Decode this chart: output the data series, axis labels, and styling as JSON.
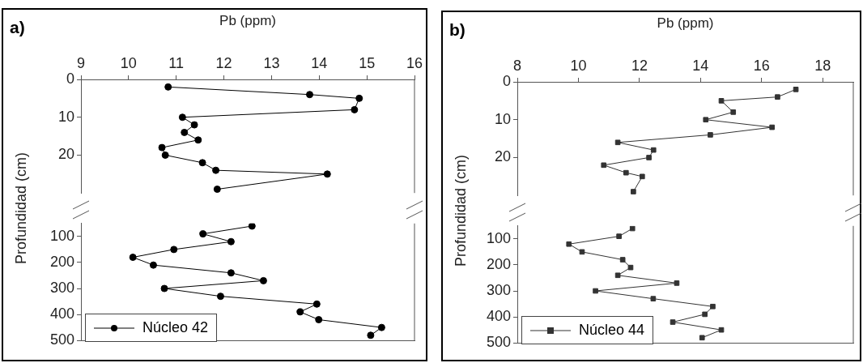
{
  "chart_data": [
    {
      "type": "line",
      "title": "a)",
      "xlabel": "Pb (ppm)",
      "ylabel": "Profundidad (cm)",
      "xlim": [
        9,
        16
      ],
      "xticks": [
        9,
        10,
        11,
        12,
        13,
        14,
        15,
        16
      ],
      "ylim": [
        30,
        0
      ],
      "yticks": [
        0,
        10,
        20
      ],
      "marker": "circle",
      "line_style": "solid",
      "series": [
        {
          "color": "#000000",
          "x": [
            10.83,
            13.8,
            14.84,
            14.74,
            11.13,
            11.38,
            11.17,
            11.46,
            10.7,
            10.77,
            11.55,
            11.83,
            14.17,
            11.86
          ],
          "values": [
            2,
            4,
            5,
            8,
            10,
            12,
            14,
            16,
            18,
            20,
            22,
            24,
            25,
            29
          ]
        }
      ]
    },
    {
      "type": "line",
      "xlim": [
        9,
        16
      ],
      "ylim": [
        500,
        50
      ],
      "yticks": [
        100,
        200,
        300,
        400,
        500
      ],
      "tick_labels": "y",
      "legend": "bottom left",
      "marker": "circle",
      "line_style": "solid",
      "series": [
        {
          "name": "Núcleo 42",
          "color": "#000000",
          "x": [
            12.59,
            11.56,
            12.15,
            10.95,
            10.09,
            10.52,
            12.15,
            12.83,
            10.75,
            11.93,
            13.95,
            13.6,
            13.99,
            15.31,
            15.08
          ],
          "values": [
            60,
            90,
            120,
            150,
            180,
            210,
            240,
            270,
            300,
            330,
            360,
            390,
            420,
            450,
            480
          ]
        }
      ]
    },
    {
      "type": "line",
      "title": "b)",
      "xlabel": "Pb (ppm)",
      "ylabel": "Profundidad (cm)",
      "xlim": [
        8,
        19
      ],
      "xticks": [
        8,
        10,
        12,
        14,
        16,
        18
      ],
      "ylim": [
        30,
        0
      ],
      "yticks": [
        0,
        10,
        20
      ],
      "marker": "square",
      "line_style": "solid",
      "series": [
        {
          "color": "#333333",
          "x": [
            17.12,
            16.52,
            14.68,
            15.07,
            14.17,
            16.34,
            14.32,
            11.29,
            12.46,
            12.31,
            10.83,
            11.56,
            12.09,
            11.8
          ],
          "values": [
            2,
            4,
            5,
            8,
            10,
            12,
            14,
            16,
            18,
            20,
            22,
            24,
            25,
            29
          ]
        }
      ]
    },
    {
      "type": "line",
      "xlim": [
        8,
        19
      ],
      "ylim": [
        500,
        50
      ],
      "yticks": [
        100,
        200,
        300,
        400,
        500
      ],
      "tick_labels": "y",
      "legend": "bottom left",
      "marker": "square",
      "line_style": "solid",
      "series": [
        {
          "name": "Núcleo 44",
          "color": "#333333",
          "x": [
            11.77,
            11.33,
            9.69,
            10.12,
            11.45,
            11.71,
            11.29,
            13.22,
            10.56,
            12.45,
            14.4,
            14.14,
            13.09,
            14.68,
            14.05
          ],
          "values": [
            60,
            90,
            120,
            150,
            180,
            210,
            240,
            270,
            300,
            330,
            360,
            390,
            420,
            450,
            480
          ]
        }
      ]
    }
  ]
}
